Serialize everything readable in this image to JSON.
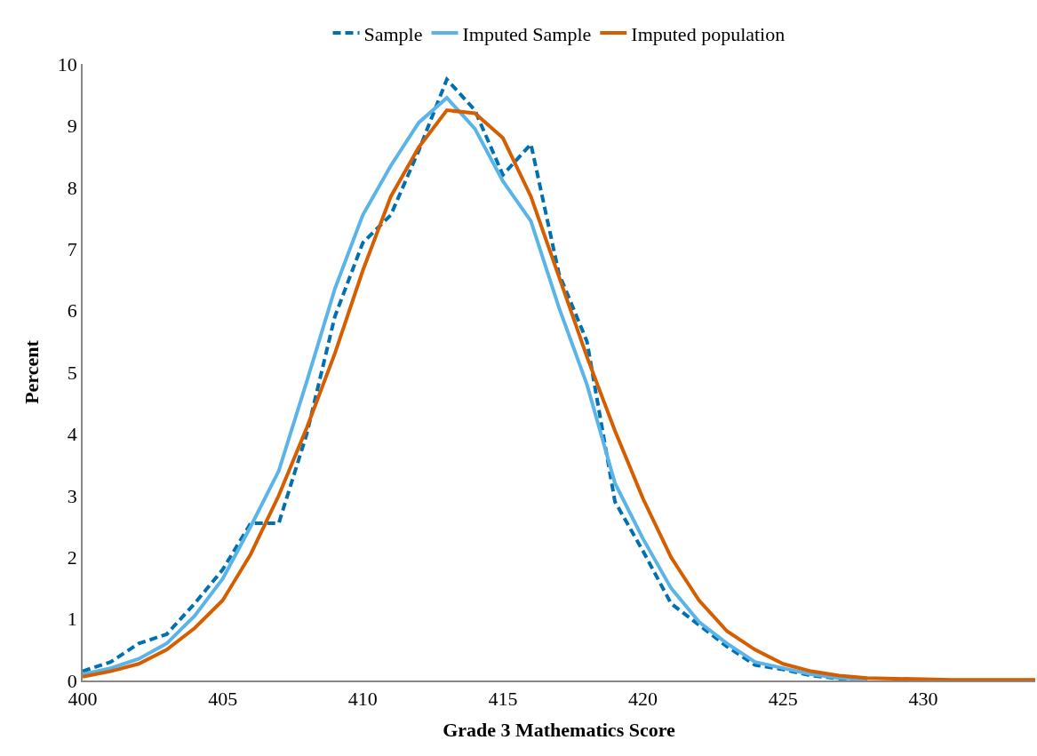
{
  "chart_data": {
    "type": "line",
    "xlabel": "Grade 3 Mathematics Score",
    "ylabel": "Percent",
    "x": [
      400,
      401,
      402,
      403,
      404,
      405,
      406,
      407,
      408,
      409,
      410,
      411,
      412,
      413,
      414,
      415,
      416,
      417,
      418,
      419,
      420,
      421,
      422,
      423,
      424,
      425,
      426,
      427,
      428,
      429,
      430,
      431,
      432,
      433,
      434
    ],
    "series": [
      {
        "name": "Sample",
        "color": "#0070b0",
        "line_style": "dashed",
        "values": [
          0.15,
          0.3,
          0.6,
          0.75,
          1.25,
          1.8,
          2.55,
          2.55,
          4.0,
          5.9,
          7.1,
          7.55,
          8.6,
          9.75,
          9.25,
          8.2,
          8.7,
          6.6,
          5.5,
          2.9,
          2.1,
          1.25,
          0.9,
          0.55,
          0.25,
          0.18,
          0.08,
          0.03,
          0.02,
          null,
          null,
          null,
          null,
          null,
          null
        ]
      },
      {
        "name": "Imputed Sample",
        "color": "#5ab4e8",
        "line_style": "solid",
        "values": [
          0.1,
          0.2,
          0.35,
          0.6,
          1.05,
          1.65,
          2.5,
          3.4,
          4.85,
          6.35,
          7.55,
          8.35,
          9.05,
          9.45,
          8.95,
          8.1,
          7.45,
          6.05,
          4.8,
          3.2,
          2.3,
          1.5,
          0.95,
          0.6,
          0.3,
          0.2,
          0.1,
          0.04,
          0.02,
          null,
          null,
          null,
          null,
          null,
          null
        ]
      },
      {
        "name": "Imputed population",
        "color": "#d55e00",
        "line_style": "solid",
        "values": [
          0.06,
          0.15,
          0.27,
          0.5,
          0.85,
          1.3,
          2.05,
          3.0,
          4.1,
          5.3,
          6.65,
          7.85,
          8.65,
          9.25,
          9.2,
          8.8,
          7.85,
          6.55,
          5.25,
          4.05,
          2.95,
          2.0,
          1.3,
          0.8,
          0.5,
          0.27,
          0.15,
          0.08,
          0.04,
          0.03,
          0.02,
          0.01,
          0.01,
          0.01,
          0.01
        ]
      }
    ],
    "xlim": [
      400,
      434
    ],
    "xticks": [
      400,
      405,
      410,
      415,
      420,
      425,
      430
    ],
    "ylim": [
      0,
      10
    ],
    "yticks": [
      0,
      1,
      2,
      3,
      4,
      5,
      6,
      7,
      8,
      9,
      10
    ],
    "legend": "top",
    "marker": "none"
  }
}
